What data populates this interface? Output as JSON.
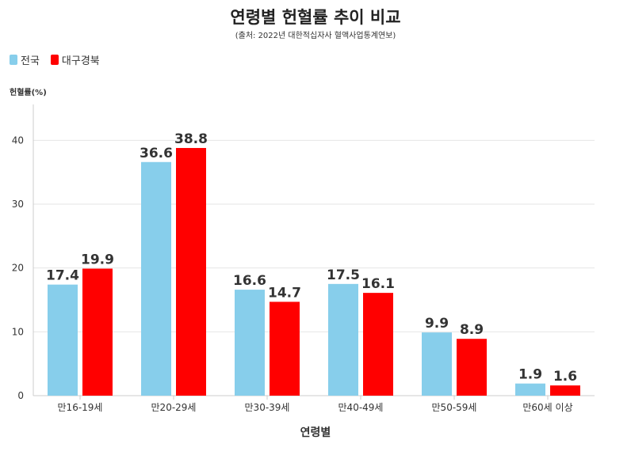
{
  "chart_data": {
    "type": "bar",
    "title": "연령별 헌혈률 추이 비교",
    "subtitle": "(출처: 2022년 대한적십자사 혈액사업통계연보)",
    "ylabel": "헌혈률(%)",
    "xlabel": "연령별",
    "categories": [
      "만16-19세",
      "만20-29세",
      "만30-39세",
      "만40-49세",
      "만50-59세",
      "만60세 이상"
    ],
    "series": [
      {
        "name": "전국",
        "color": "#87ceeb",
        "values": [
          17.4,
          36.6,
          16.6,
          17.5,
          9.9,
          1.9
        ]
      },
      {
        "name": "대구경북",
        "color": "#ff0000",
        "values": [
          19.9,
          38.8,
          14.7,
          16.1,
          8.9,
          1.6
        ]
      }
    ],
    "yticks": [
      0,
      10,
      20,
      30,
      40
    ],
    "ylim": [
      0,
      45
    ],
    "grid": true,
    "legend_position": "top-left"
  }
}
